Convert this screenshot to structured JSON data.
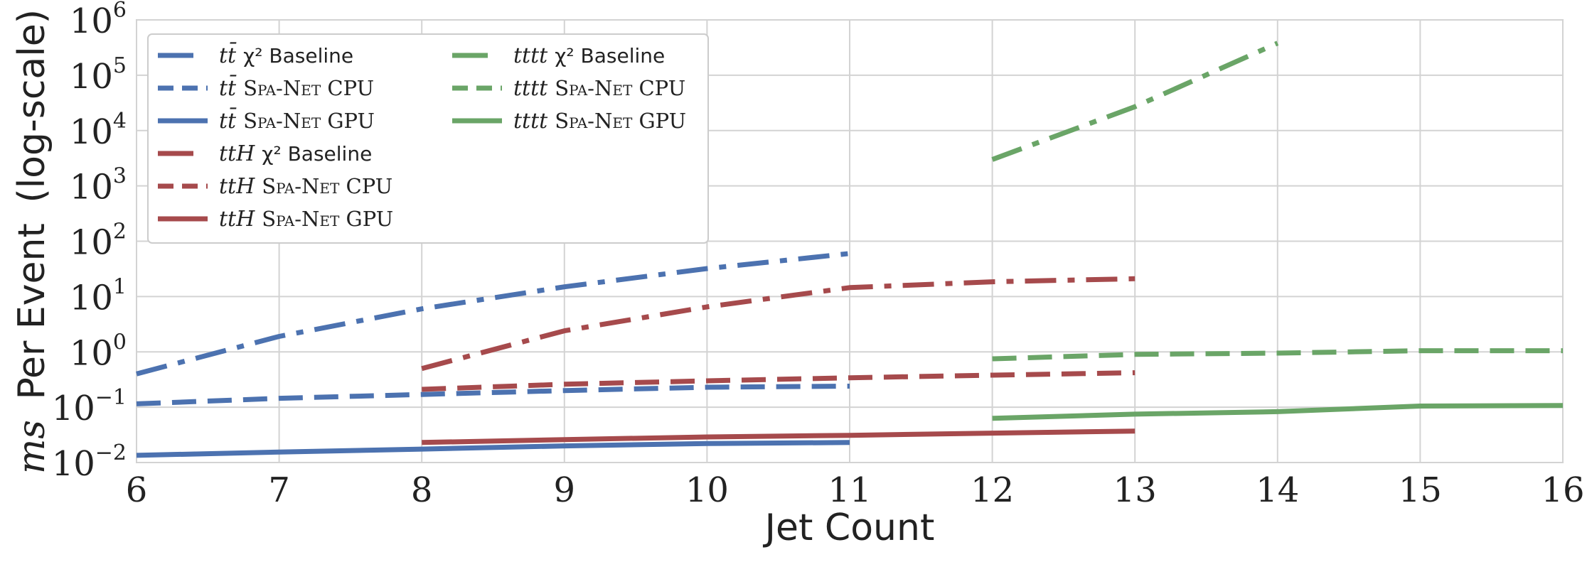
{
  "chart_data": {
    "type": "line",
    "xlabel": "Jet Count",
    "ylabel_math": "ms",
    "ylabel_text": "Per Event",
    "ylabel_suffix": "(log-scale)",
    "x_ticks": [
      6,
      7,
      8,
      9,
      10,
      11,
      12,
      13,
      14,
      15,
      16
    ],
    "y_ticks": [
      {
        "base": "10",
        "exp": "−2",
        "value": 0.01
      },
      {
        "base": "10",
        "exp": "−1",
        "value": 0.1
      },
      {
        "base": "10",
        "exp": "0",
        "value": 1
      },
      {
        "base": "10",
        "exp": "1",
        "value": 10
      },
      {
        "base": "10",
        "exp": "2",
        "value": 100
      },
      {
        "base": "10",
        "exp": "3",
        "value": 1000
      },
      {
        "base": "10",
        "exp": "4",
        "value": 10000
      },
      {
        "base": "10",
        "exp": "5",
        "value": 100000
      },
      {
        "base": "10",
        "exp": "6",
        "value": 1000000
      }
    ],
    "xlim": [
      6,
      16
    ],
    "ylim": [
      0.01,
      1000000
    ],
    "yscale": "log",
    "grid": true,
    "legend_placement": "top-left",
    "colors": {
      "blue": "#4c72b0",
      "red": "#a64a4c",
      "green": "#6aa567"
    },
    "series": [
      {
        "name": "tt̄ χ² Baseline",
        "proc": "tt̄",
        "method": "χ² Baseline",
        "color": "#4c72b0",
        "style": "dashdot",
        "x": [
          6,
          7,
          8,
          9,
          10,
          11
        ],
        "y": [
          0.4,
          1.9,
          6,
          15,
          32,
          60
        ]
      },
      {
        "name": "tt̄ Spa-Net CPU",
        "proc": "tt̄",
        "method": "Spa-Net CPU",
        "color": "#4c72b0",
        "style": "dashed",
        "x": [
          6,
          7,
          8,
          9,
          10,
          11
        ],
        "y": [
          0.115,
          0.145,
          0.17,
          0.2,
          0.23,
          0.24
        ]
      },
      {
        "name": "tt̄ Spa-Net GPU",
        "proc": "tt̄",
        "method": "Spa-Net GPU",
        "color": "#4c72b0",
        "style": "solid",
        "x": [
          6,
          7,
          8,
          9,
          10,
          11
        ],
        "y": [
          0.0135,
          0.0155,
          0.0175,
          0.02,
          0.022,
          0.023
        ]
      },
      {
        "name": "ttH χ² Baseline",
        "proc": "ttH",
        "method": "χ² Baseline",
        "color": "#a64a4c",
        "style": "dashdot",
        "x": [
          8,
          9,
          10,
          11,
          12,
          13
        ],
        "y": [
          0.5,
          2.4,
          6.5,
          14.5,
          18.5,
          21
        ]
      },
      {
        "name": "ttH Spa-Net CPU",
        "proc": "ttH",
        "method": "Spa-Net CPU",
        "color": "#a64a4c",
        "style": "dashed",
        "x": [
          8,
          9,
          10,
          11,
          12,
          13
        ],
        "y": [
          0.21,
          0.26,
          0.3,
          0.34,
          0.38,
          0.42
        ]
      },
      {
        "name": "ttH Spa-Net GPU",
        "proc": "ttH",
        "method": "Spa-Net GPU",
        "color": "#a64a4c",
        "style": "solid",
        "x": [
          8,
          9,
          10,
          11,
          12,
          13
        ],
        "y": [
          0.023,
          0.026,
          0.029,
          0.031,
          0.034,
          0.037
        ]
      },
      {
        "name": "tttt χ² Baseline",
        "proc": "tttt",
        "method": "χ² Baseline",
        "color": "#6aa567",
        "style": "dashdot",
        "x": [
          12,
          13,
          14
        ],
        "y": [
          3000,
          27000,
          380000
        ]
      },
      {
        "name": "tttt Spa-Net CPU",
        "proc": "tttt",
        "method": "Spa-Net CPU",
        "color": "#6aa567",
        "style": "dashed",
        "x": [
          12,
          13,
          14,
          15,
          16
        ],
        "y": [
          0.75,
          0.9,
          0.95,
          1.05,
          1.05
        ]
      },
      {
        "name": "tttt Spa-Net GPU",
        "proc": "tttt",
        "method": "Spa-Net GPU",
        "color": "#6aa567",
        "style": "solid",
        "x": [
          12,
          13,
          14,
          15,
          16
        ],
        "y": [
          0.063,
          0.075,
          0.083,
          0.105,
          0.107
        ]
      }
    ]
  }
}
